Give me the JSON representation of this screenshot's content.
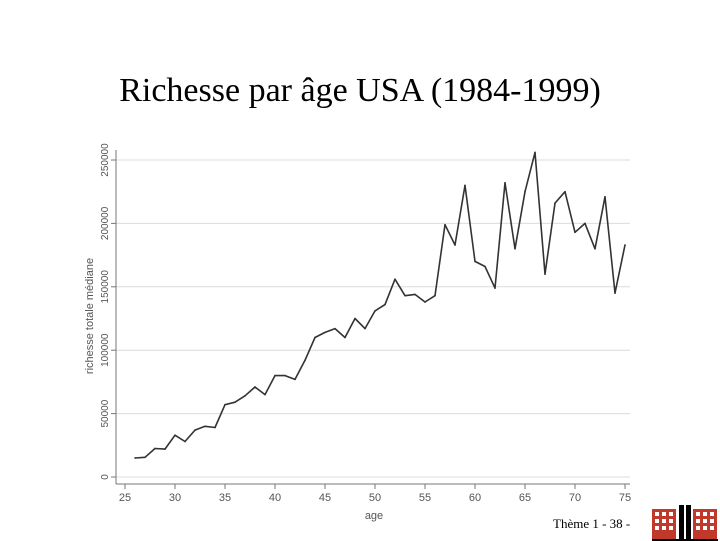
{
  "slide": {
    "title": "Richesse par âge USA (1984-1999)",
    "footer": "Thème 1 - 38 -"
  },
  "chart_data": {
    "type": "line",
    "title": "",
    "xlabel": "age",
    "ylabel": "richesse totale médiane",
    "xlim": [
      25,
      75
    ],
    "ylim": [
      0,
      250000
    ],
    "xticks": [
      25,
      30,
      35,
      40,
      45,
      50,
      55,
      60,
      65,
      70,
      75
    ],
    "yticks": [
      0,
      50000,
      100000,
      150000,
      200000,
      250000
    ],
    "grid": true,
    "line_color": "#333333",
    "series": [
      {
        "x": [
          26,
          27,
          28,
          29,
          30,
          31,
          32,
          33,
          34,
          35,
          36,
          37,
          38,
          39,
          40,
          41,
          42,
          43,
          44,
          45,
          46,
          47,
          48,
          49,
          50,
          51,
          52,
          53,
          54,
          55,
          56,
          57,
          58,
          59,
          60,
          61,
          62,
          63,
          64,
          65,
          66,
          67,
          68,
          69,
          70,
          71,
          72,
          73,
          74,
          75
        ],
        "values": [
          15000,
          15500,
          22500,
          22000,
          33000,
          28000,
          37000,
          40000,
          39000,
          57000,
          59000,
          64000,
          71000,
          65000,
          80000,
          80000,
          77000,
          92000,
          110000,
          114000,
          117000,
          110000,
          125000,
          117000,
          131000,
          136000,
          156000,
          143000,
          144000,
          138000,
          143000,
          199000,
          183000,
          230000,
          170000,
          166000,
          149000,
          232000,
          180000,
          225000,
          256000,
          160000,
          216000,
          225000,
          193000,
          200000,
          180000,
          221000,
          145000,
          183000
        ]
      }
    ]
  }
}
